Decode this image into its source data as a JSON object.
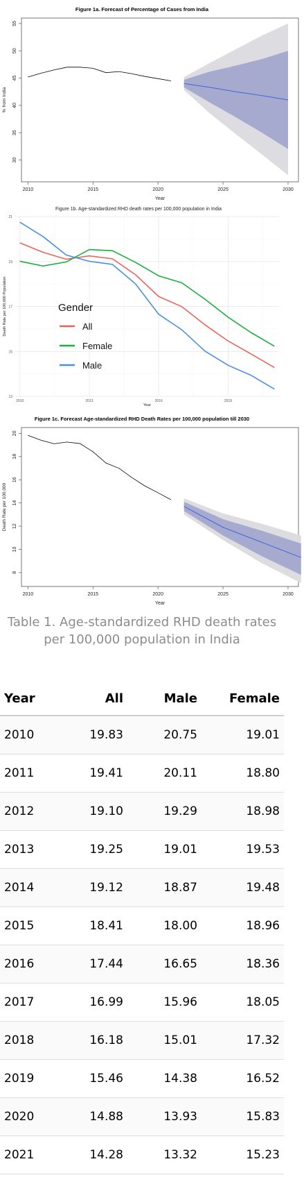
{
  "chart_data": [
    {
      "type": "line",
      "title": "Figure 1a. Forecast of Percentage of Cases from India",
      "xlabel": "Year",
      "ylabel": "% from India",
      "xlim": [
        2009.5,
        2030.8
      ],
      "ylim": [
        26,
        56
      ],
      "xticks": [
        2010,
        2015,
        2020,
        2025,
        2030
      ],
      "yticks": [
        30,
        35,
        40,
        45,
        50,
        55
      ],
      "grid": false,
      "series": [
        {
          "x": [
            2010,
            2011,
            2012,
            2013,
            2014,
            2015,
            2016,
            2017,
            2018,
            2019,
            2020,
            2021
          ],
          "values": [
            45.2,
            45.9,
            46.5,
            47.0,
            47.0,
            46.8,
            46.0,
            46.2,
            45.8,
            45.3,
            44.9,
            44.5
          ]
        }
      ],
      "forecast": {
        "x": [
          2022,
          2024,
          2026,
          2028,
          2030
        ],
        "mean": [
          44.0,
          43.3,
          42.5,
          41.8,
          41.0
        ],
        "lo80": [
          43.3,
          40.5,
          37.8,
          35.0,
          32.0
        ],
        "hi80": [
          44.7,
          46.2,
          47.3,
          48.5,
          50.0
        ],
        "lo95": [
          42.8,
          38.5,
          34.7,
          31.0,
          27.2
        ],
        "hi95": [
          45.2,
          47.8,
          50.3,
          52.8,
          55.0
        ]
      },
      "colors": {
        "history": "#000000",
        "mean": "#3a66dd",
        "band80": "#a7aacf",
        "band95": "#dcdce1"
      }
    },
    {
      "type": "line",
      "title": "Figure 1b. Age-standardized RHD death rates per 100,000 population in India",
      "xlabel": "Year",
      "ylabel": "Death Rate per 100,000 Population",
      "xlim": [
        2009.8,
        2021.2
      ],
      "ylim": [
        13,
        21
      ],
      "xticks": [
        2010,
        2013,
        2016,
        2019
      ],
      "yticks": [
        13,
        15,
        17,
        19,
        21
      ],
      "grid": true,
      "legend": {
        "title": "Gender",
        "position": "left"
      },
      "x": [
        2010,
        2011,
        2012,
        2013,
        2014,
        2015,
        2016,
        2017,
        2018,
        2019,
        2020,
        2021
      ],
      "series": [
        {
          "name": "All",
          "color": "#e8645a",
          "values": [
            19.83,
            19.41,
            19.1,
            19.25,
            19.12,
            18.41,
            17.44,
            16.99,
            16.18,
            15.46,
            14.88,
            14.28
          ]
        },
        {
          "name": "Female",
          "color": "#1aae3c",
          "values": [
            19.01,
            18.8,
            18.98,
            19.53,
            19.48,
            18.96,
            18.36,
            18.05,
            17.32,
            16.52,
            15.83,
            15.23
          ]
        },
        {
          "name": "Male",
          "color": "#4a90e2",
          "values": [
            20.75,
            20.11,
            19.29,
            19.01,
            18.87,
            18.0,
            16.65,
            15.96,
            15.01,
            14.38,
            13.93,
            13.32
          ]
        }
      ]
    },
    {
      "type": "line",
      "title": "Figure 1c. Forecast Age-standardized RHD Death Rates per 100,000 population till 2030",
      "xlabel": "Year",
      "ylabel": "Death Rate per 100,000",
      "xlim": [
        2009.5,
        2030.8
      ],
      "ylim": [
        6.8,
        20.5
      ],
      "xticks": [
        2010,
        2015,
        2020,
        2025,
        2030
      ],
      "yticks": [
        8,
        10,
        12,
        14,
        16,
        18,
        20
      ],
      "grid": false,
      "series": [
        {
          "x": [
            2010,
            2011,
            2012,
            2013,
            2014,
            2015,
            2016,
            2017,
            2018,
            2019,
            2020,
            2021
          ],
          "values": [
            19.83,
            19.41,
            19.1,
            19.25,
            19.12,
            18.41,
            17.44,
            16.99,
            16.18,
            15.46,
            14.88,
            14.28
          ]
        }
      ],
      "forecast": {
        "x": [
          2022,
          2025,
          2028,
          2031
        ],
        "mean": [
          13.7,
          11.9,
          10.6,
          9.3
        ],
        "lo80": [
          13.3,
          11.2,
          9.4,
          7.8
        ],
        "hi80": [
          14.1,
          12.6,
          11.6,
          10.5
        ],
        "lo95": [
          13.0,
          10.8,
          8.8,
          7.1
        ],
        "hi95": [
          14.4,
          13.1,
          12.2,
          11.2
        ]
      },
      "colors": {
        "history": "#000000",
        "mean": "#3a66dd",
        "band80": "#a7aacf",
        "band95": "#dcdce1"
      }
    }
  ],
  "table": {
    "caption": "Table 1. Age-standardized RHD death rates per 100,000 population in India",
    "headers": {
      "year": "Year",
      "all": "All",
      "male": "Male",
      "female": "Female"
    },
    "rows": [
      {
        "year": "2010",
        "all": "19.83",
        "male": "20.75",
        "female": "19.01"
      },
      {
        "year": "2011",
        "all": "19.41",
        "male": "20.11",
        "female": "18.80"
      },
      {
        "year": "2012",
        "all": "19.10",
        "male": "19.29",
        "female": "18.98"
      },
      {
        "year": "2013",
        "all": "19.25",
        "male": "19.01",
        "female": "19.53"
      },
      {
        "year": "2014",
        "all": "19.12",
        "male": "18.87",
        "female": "19.48"
      },
      {
        "year": "2015",
        "all": "18.41",
        "male": "18.00",
        "female": "18.96"
      },
      {
        "year": "2016",
        "all": "17.44",
        "male": "16.65",
        "female": "18.36"
      },
      {
        "year": "2017",
        "all": "16.99",
        "male": "15.96",
        "female": "18.05"
      },
      {
        "year": "2018",
        "all": "16.18",
        "male": "15.01",
        "female": "17.32"
      },
      {
        "year": "2019",
        "all": "15.46",
        "male": "14.38",
        "female": "16.52"
      },
      {
        "year": "2020",
        "all": "14.88",
        "male": "13.93",
        "female": "15.83"
      },
      {
        "year": "2021",
        "all": "14.28",
        "male": "13.32",
        "female": "15.23"
      }
    ]
  }
}
